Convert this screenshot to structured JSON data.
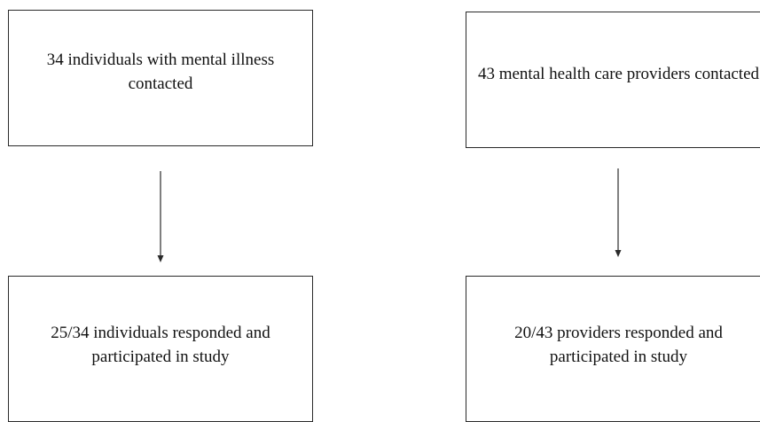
{
  "flow": {
    "left_top": "34 individuals with mental illness contacted",
    "right_top": "43 mental health care providers contacted",
    "left_bottom": "25/34 individuals responded and participated in study",
    "right_bottom": "20/43 providers responded and participated in study"
  },
  "colors": {
    "border": "#2a2a2a",
    "text": "#111111",
    "background": "#ffffff"
  }
}
